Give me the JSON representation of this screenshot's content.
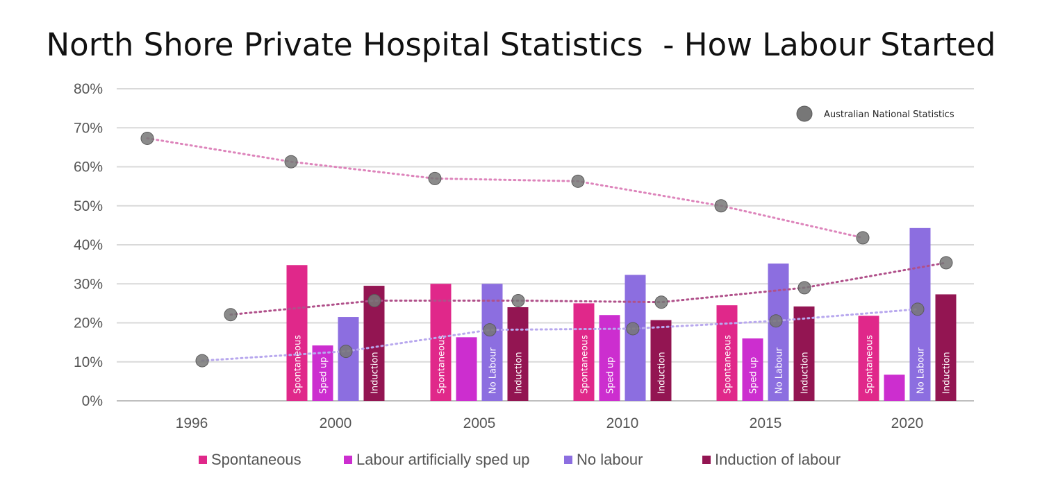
{
  "chart_data": {
    "type": "bar",
    "title": "North Shore Private Hospital Statistics  - How Labour Started",
    "xlabel": "",
    "ylabel": "",
    "ylim": [
      0,
      80
    ],
    "y_ticks": [
      "0%",
      "10%",
      "20%",
      "30%",
      "40%",
      "50%",
      "60%",
      "70%",
      "80%"
    ],
    "categories": [
      "1996",
      "2000",
      "2005",
      "2010",
      "2015",
      "2020"
    ],
    "series": [
      {
        "name": "Spontaneous",
        "color": "#e0288a",
        "values": [
          null,
          34.8,
          30.0,
          25.0,
          24.5,
          21.8
        ],
        "bar_labels": [
          "",
          "Spontaneous",
          "Spontaneous",
          "Spontaneous",
          "Spontaneous",
          "Spontaneous"
        ]
      },
      {
        "name": "Labour artificially sped up",
        "color": "#cc2ecf",
        "values": [
          null,
          14.2,
          16.3,
          22.0,
          16.0,
          6.7
        ],
        "bar_labels": [
          "",
          "Sped up",
          "",
          "Sped up",
          "Sped up",
          ""
        ]
      },
      {
        "name": "No labour",
        "color": "#8c6ee0",
        "values": [
          null,
          21.5,
          30.0,
          32.3,
          35.2,
          44.3
        ],
        "bar_labels": [
          "",
          "",
          "No Labour",
          "",
          "No Labour",
          "No Labour"
        ]
      },
      {
        "name": "Induction of labour",
        "color": "#931552",
        "values": [
          null,
          29.5,
          24.0,
          20.7,
          24.2,
          27.3
        ],
        "bar_labels": [
          "",
          "Induction",
          "Induction",
          "Induction",
          "Induction",
          "Induction"
        ]
      }
    ],
    "national_stats": {
      "name": "Australian National Statistics",
      "marker_color": "#777777",
      "lines": [
        {
          "series": "Spontaneous",
          "line_color": "#dd84bb",
          "values": [
            67.3,
            61.3,
            57.0,
            56.3,
            50.0,
            41.8
          ]
        },
        {
          "series": "Induction of labour",
          "line_color": "#b0508a",
          "values": [
            22.1,
            25.7,
            25.7,
            25.3,
            29.0,
            35.4
          ]
        },
        {
          "series": "No labour",
          "line_color": "#b8a8ee",
          "values": [
            10.3,
            12.7,
            18.2,
            18.5,
            20.5,
            23.5
          ]
        }
      ]
    },
    "legend_position": "bottom",
    "grid": true
  }
}
